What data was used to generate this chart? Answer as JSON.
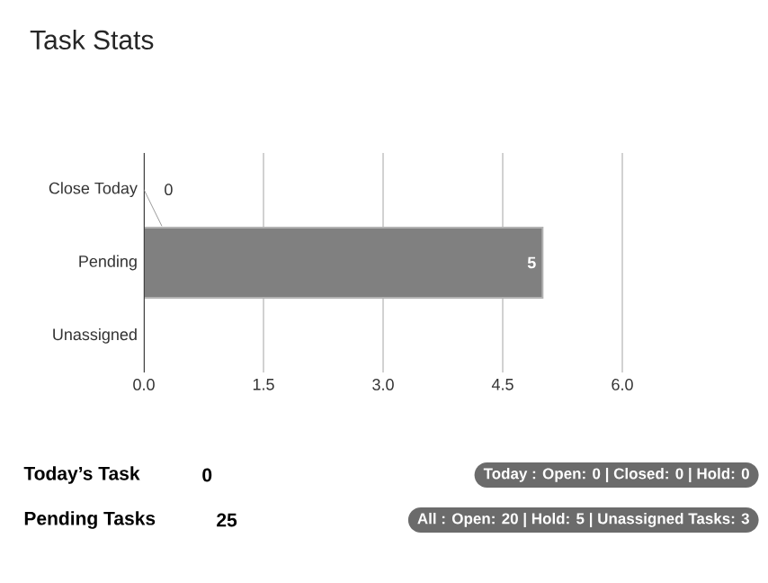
{
  "chart_data": {
    "type": "bar",
    "orientation": "horizontal",
    "title": "Task Stats",
    "categories": [
      "Close Today",
      "Pending",
      "Unassigned"
    ],
    "values": [
      0,
      5,
      0
    ],
    "value_labels": [
      "0",
      "5",
      null
    ],
    "color": "#808080",
    "xlim": [
      0,
      6
    ],
    "xticks": [
      {
        "value": 0,
        "label": "0.0"
      },
      {
        "value": 1.5,
        "label": "1.5"
      },
      {
        "value": 3,
        "label": "3.0"
      },
      {
        "value": 4.5,
        "label": "4.5"
      },
      {
        "value": 6,
        "label": "6.0"
      }
    ],
    "grid": "x",
    "annotations": [
      "Today’s Task",
      "0",
      "Pending Tasks",
      "25",
      "Today : Open: 0  |  Closed: 0 |  Hold: 0",
      "All : Open: 20  | Hold: 5  |  Unassigned Tasks: 3"
    ]
  }
}
